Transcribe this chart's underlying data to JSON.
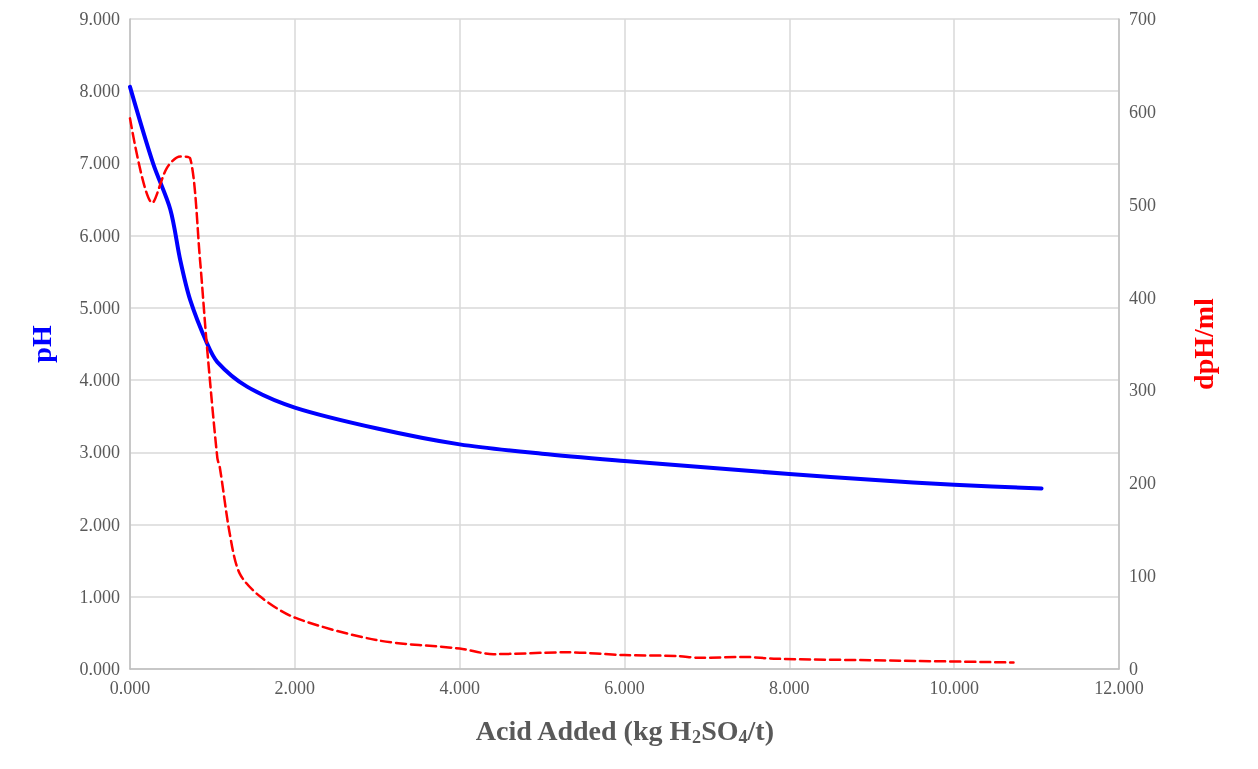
{
  "chart_data": {
    "type": "line",
    "xlabel": "Acid Added (kg H$_{2}$SO$_{4}$/t)",
    "ylabel": "pH",
    "y2label": "dpH/ml",
    "xlim": [
      0,
      12
    ],
    "xticks": [
      {
        "value": 0,
        "label": "0.000"
      },
      {
        "value": 2,
        "label": "2.000"
      },
      {
        "value": 4,
        "label": "4.000"
      },
      {
        "value": 6,
        "label": "6.000"
      },
      {
        "value": 8,
        "label": "8.000"
      },
      {
        "value": 10,
        "label": "10.000"
      },
      {
        "value": 12,
        "label": "12.000"
      }
    ],
    "ylim": [
      0,
      9
    ],
    "yticks": [
      {
        "value": 0,
        "label": "0.000"
      },
      {
        "value": 1,
        "label": "1.000"
      },
      {
        "value": 2,
        "label": "2.000"
      },
      {
        "value": 3,
        "label": "3.000"
      },
      {
        "value": 4,
        "label": "4.000"
      },
      {
        "value": 5,
        "label": "5.000"
      },
      {
        "value": 6,
        "label": "6.000"
      },
      {
        "value": 7,
        "label": "7.000"
      },
      {
        "value": 8,
        "label": "8.000"
      },
      {
        "value": 9,
        "label": "9.000"
      }
    ],
    "y2lim": [
      0,
      700
    ],
    "y2ticks": [
      0,
      100,
      200,
      300,
      400,
      500,
      600,
      700
    ],
    "grid": true,
    "marker": "none",
    "series": [
      {
        "color": "#0000ff",
        "line_style": "solid",
        "x": [
          0,
          0.28,
          0.49,
          0.61,
          0.73,
          0.93,
          1.06,
          1.42,
          2,
          3,
          4,
          5,
          6,
          7,
          8,
          9,
          10,
          11.06
        ],
        "values": [
          8.06,
          7.0,
          6.36,
          5.66,
          5.11,
          4.52,
          4.25,
          3.91,
          3.62,
          3.33,
          3.11,
          2.98,
          2.88,
          2.79,
          2.7,
          2.62,
          2.55,
          2.5
        ]
      },
      {
        "color": "#ff0000",
        "line_style": "dashed",
        "axis": "y2",
        "x": [
          0,
          0.27,
          0.45,
          0.61,
          0.73,
          0.85,
          0.93,
          1.06,
          1.09,
          1.21,
          1.33,
          1.58,
          2.01,
          3,
          4,
          4.41,
          5.3,
          6,
          6.64,
          6.92,
          7.44,
          7.85,
          9.34,
          10.72
        ],
        "values": [
          593,
          502,
          540,
          552,
          550,
          440,
          351,
          227,
          217,
          146,
          103,
          78,
          55,
          31,
          22,
          16,
          18,
          15,
          14,
          12,
          13,
          11,
          9,
          7
        ]
      }
    ]
  }
}
